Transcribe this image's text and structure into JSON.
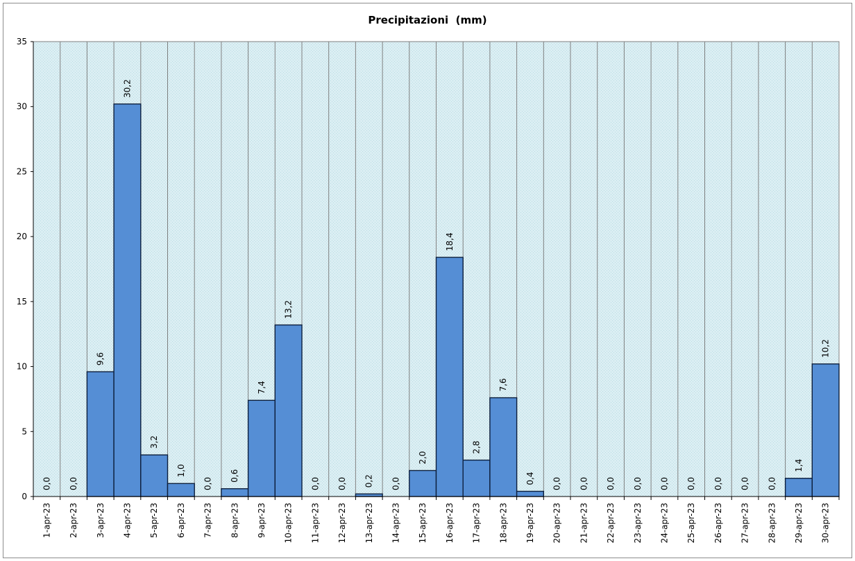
{
  "chart_data": {
    "type": "bar",
    "title": "Precipitazioni  (mm)",
    "xlabel": "",
    "ylabel": "",
    "ylim": [
      0,
      35
    ],
    "yticks": [
      0,
      5,
      10,
      15,
      20,
      25,
      30,
      35
    ],
    "grid": true,
    "legend": "none",
    "colors": {
      "bar_fill": "#558ed5",
      "bar_edge": "#0d1f3c",
      "plot_background": "#dbeef3",
      "gridline": "#808080"
    },
    "categories": [
      "1-apr-23",
      "2-apr-23",
      "3-apr-23",
      "4-apr-23",
      "5-apr-23",
      "6-apr-23",
      "7-apr-23",
      "8-apr-23",
      "9-apr-23",
      "10-apr-23",
      "11-apr-23",
      "12-apr-23",
      "13-apr-23",
      "14-apr-23",
      "15-apr-23",
      "16-apr-23",
      "17-apr-23",
      "18-apr-23",
      "19-apr-23",
      "20-apr-23",
      "21-apr-23",
      "22-apr-23",
      "23-apr-23",
      "24-apr-23",
      "25-apr-23",
      "26-apr-23",
      "27-apr-23",
      "28-apr-23",
      "29-apr-23",
      "30-apr-23"
    ],
    "values": [
      0.0,
      0.0,
      9.6,
      30.2,
      3.2,
      1.0,
      0.0,
      0.6,
      7.4,
      13.2,
      0.0,
      0.0,
      0.2,
      0.0,
      2.0,
      18.4,
      2.8,
      7.6,
      0.4,
      0.0,
      0.0,
      0.0,
      0.0,
      0.0,
      0.0,
      0.0,
      0.0,
      0.0,
      1.4,
      10.2
    ],
    "data_labels": [
      "0,0",
      "0,0",
      "9,6",
      "30,2",
      "3,2",
      "1,0",
      "0,0",
      "0,6",
      "7,4",
      "13,2",
      "0,0",
      "0,0",
      "0,2",
      "0,0",
      "2,0",
      "18,4",
      "2,8",
      "7,6",
      "0,4",
      "0,0",
      "0,0",
      "0,0",
      "0,0",
      "0,0",
      "0,0",
      "0,0",
      "0,0",
      "0,0",
      "1,4",
      "10,2"
    ]
  }
}
